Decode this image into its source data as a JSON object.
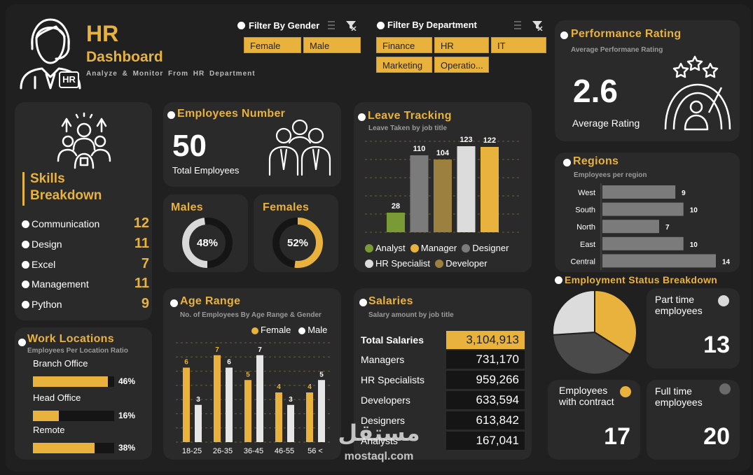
{
  "header": {
    "title": "HR",
    "title2": "Dashboard",
    "subtitle": "Analyze & Monitor From HR Department",
    "badge": "HR"
  },
  "filters": {
    "gender": {
      "label": "Filter By Gender",
      "options": [
        "Female",
        "Male"
      ]
    },
    "department": {
      "label": "Filter By Department",
      "options": [
        "Finance",
        "HR",
        "IT",
        "Marketing",
        "Operatio..."
      ]
    }
  },
  "performance": {
    "title": "Performance Rating",
    "subtitle": "Average Performane Rating",
    "value": "2.6",
    "label": "Average Rating"
  },
  "skills": {
    "title1": "Skills",
    "title2": "Breakdown",
    "items": [
      {
        "label": "Communication",
        "value": "12"
      },
      {
        "label": "Design",
        "value": "11"
      },
      {
        "label": "Excel",
        "value": "7"
      },
      {
        "label": "Management",
        "value": "11"
      },
      {
        "label": "Python",
        "value": "9"
      }
    ]
  },
  "employees": {
    "title": "Employees Number",
    "value": "50",
    "label": "Total Employees"
  },
  "males": {
    "title": "Males",
    "percent": "48%",
    "ratio": 0.48
  },
  "females": {
    "title": "Females",
    "percent": "52%",
    "ratio": 0.52
  },
  "leave": {
    "title": "Leave Tracking",
    "subtitle": "Leave Taken by job title",
    "legend": [
      "Analyst",
      "Manager",
      "Designer",
      "HR Specialist",
      "Developer"
    ],
    "chart_data": {
      "type": "bar",
      "categories": [
        "Analyst",
        "Designer",
        "Developer",
        "HR Specialist",
        "Manager"
      ],
      "values": [
        28,
        110,
        104,
        123,
        122
      ],
      "labels": [
        "28",
        "110",
        "104",
        "123",
        "122"
      ],
      "colors": [
        "#7a9a35",
        "#7b7b7b",
        "#9c8040",
        "#dcdcdc",
        "#e8b23d"
      ],
      "ylim": [
        0,
        130
      ]
    }
  },
  "regions": {
    "title": "Regions",
    "subtitle": "Employees per region",
    "chart_data": {
      "type": "bar",
      "categories": [
        "West",
        "South",
        "North",
        "East",
        "Central"
      ],
      "values": [
        9,
        10,
        7,
        10,
        14
      ],
      "labels": [
        "9",
        "10",
        "7",
        "10",
        "14"
      ],
      "xlim": [
        0,
        14
      ]
    }
  },
  "work_locations": {
    "title": "Work Locations",
    "subtitle": "Employees Per Location Ratio",
    "items": [
      {
        "label": "Branch Office",
        "percent": "46%",
        "ratio": 0.46
      },
      {
        "label": "Head Office",
        "percent": "16%",
        "ratio": 0.16
      },
      {
        "label": "Remote",
        "percent": "38%",
        "ratio": 0.38
      }
    ]
  },
  "age": {
    "title": "Age Range",
    "subtitle": "No. of Employees By Age Range & Gender",
    "legend": [
      "Female",
      "Male"
    ],
    "chart_data": {
      "type": "bar",
      "categories": [
        "18-25",
        "26-35",
        "36-45",
        "46-55",
        "56 <"
      ],
      "series": [
        {
          "name": "Female",
          "values": [
            6,
            7,
            5,
            4,
            4
          ],
          "color": "#e8b23d"
        },
        {
          "name": "Male",
          "values": [
            3,
            6,
            7,
            3,
            5
          ],
          "color": "#e6e6e6"
        }
      ],
      "labels_female": [
        "6",
        "7",
        "5",
        "4",
        "4"
      ],
      "labels_male": [
        "3",
        "6",
        "7",
        "3",
        "5"
      ],
      "ylim": [
        0,
        8
      ]
    }
  },
  "salaries": {
    "title": "Salaries",
    "subtitle": "Salary amount by job title",
    "total_label": "Total Salaries",
    "total_value": "3,104,913",
    "rows": [
      {
        "label": "Managers",
        "value": "731,170"
      },
      {
        "label": "HR Specialists",
        "value": "959,266"
      },
      {
        "label": "Developers",
        "value": "633,594"
      },
      {
        "label": "Designers",
        "value": "613,842"
      },
      {
        "label": "Analysts",
        "value": "167,041"
      }
    ]
  },
  "employment": {
    "title": "Employment Status Breakdown",
    "chart_data": {
      "type": "pie",
      "categories": [
        "Contract",
        "Full time",
        "Part time"
      ],
      "values": [
        17,
        20,
        13
      ],
      "colors": [
        "#e8b23d",
        "#4a4a4a",
        "#dcdcdc"
      ]
    },
    "part_time": {
      "label": "Part time employees",
      "value": "13"
    },
    "contract": {
      "label": "Employees with contract",
      "value": "17"
    },
    "full_time": {
      "label": "Full time employees",
      "value": "20"
    }
  },
  "watermark": {
    "brand": "مستقل",
    "url": "mostaql.com"
  }
}
